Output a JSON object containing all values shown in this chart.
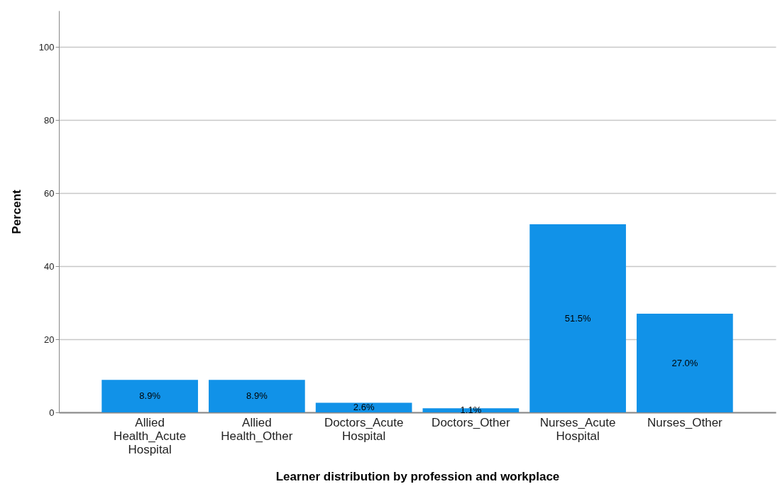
{
  "chart_data": {
    "type": "bar",
    "xlabel": "Learner distribution by profession and workplace",
    "ylabel": "Percent",
    "categories": [
      "Allied Health_Acute Hospital",
      "Allied Health_Other",
      "Doctors_Acute Hospital",
      "Doctors_Other",
      "Nurses_Acute Hospital",
      "Nurses_Other"
    ],
    "values": [
      8.9,
      8.9,
      2.6,
      1.1,
      51.5,
      27.0
    ],
    "value_labels": [
      "8.9%",
      "8.9%",
      "2.6%",
      "1.1%",
      "51.5%",
      "27.0%"
    ],
    "color": "#1192e8",
    "ylim": [
      0,
      110
    ],
    "yticks": [
      0,
      20,
      40,
      60,
      80,
      100
    ],
    "grid": "y"
  }
}
